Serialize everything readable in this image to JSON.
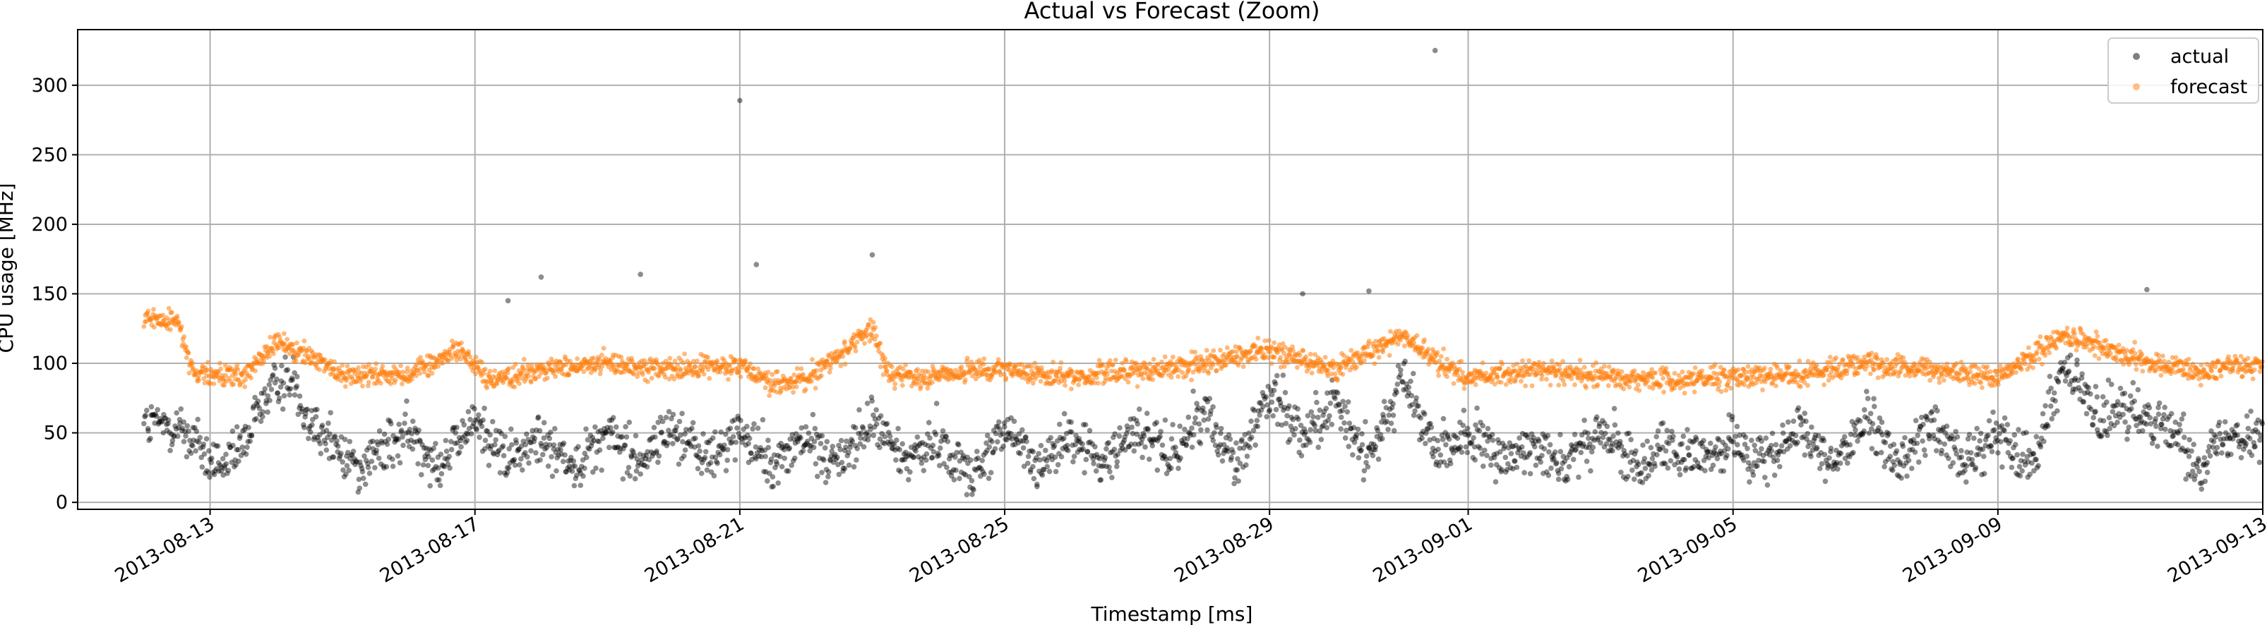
{
  "chart_data": {
    "type": "scatter",
    "title": "Actual vs Forecast (Zoom)",
    "xlabel": "Timestamp [ms]",
    "ylabel": "CPU usage [MHz]",
    "x_start": "2013-08-12",
    "x_end": "2013-09-13",
    "xlim": [
      "2013-08-11",
      "2013-09-13"
    ],
    "ylim": [
      -5,
      340
    ],
    "grid": true,
    "legend_position": "top-right",
    "x_ticks": [
      "2013-08-13",
      "2013-08-17",
      "2013-08-21",
      "2013-08-25",
      "2013-08-29",
      "2013-09-01",
      "2013-09-05",
      "2013-09-09",
      "2013-09-13"
    ],
    "y_ticks": [
      0,
      50,
      100,
      150,
      200,
      250,
      300
    ],
    "series": [
      {
        "name": "actual",
        "color": "#000000",
        "profile": [
          [
            "2013-08-12T12:00",
            55
          ],
          [
            "2013-08-12T18:00",
            45
          ],
          [
            "2013-08-13T00:00",
            28
          ],
          [
            "2013-08-13T06:00",
            26
          ],
          [
            "2013-08-13T12:00",
            40
          ],
          [
            "2013-08-13T18:00",
            70
          ],
          [
            "2013-08-14T00:00",
            85
          ],
          [
            "2013-08-14T06:00",
            90
          ],
          [
            "2013-08-14T12:00",
            60
          ],
          [
            "2013-08-15T00:00",
            35
          ],
          [
            "2013-08-15T06:00",
            26
          ],
          [
            "2013-08-16T00:00",
            50
          ],
          [
            "2013-08-16T12:00",
            28
          ],
          [
            "2013-08-17T00:00",
            60
          ],
          [
            "2013-08-17T12:00",
            30
          ],
          [
            "2013-08-18T00:00",
            45
          ],
          [
            "2013-08-18T12:00",
            28
          ],
          [
            "2013-08-19T00:00",
            50
          ],
          [
            "2013-08-19T12:00",
            30
          ],
          [
            "2013-08-20T00:00",
            55
          ],
          [
            "2013-08-20T12:00",
            30
          ],
          [
            "2013-08-21T00:00",
            50
          ],
          [
            "2013-08-21T12:00",
            28
          ],
          [
            "2013-08-22T00:00",
            45
          ],
          [
            "2013-08-22T12:00",
            28
          ],
          [
            "2013-08-23T00:00",
            60
          ],
          [
            "2013-08-23T12:00",
            30
          ],
          [
            "2013-08-24T00:00",
            45
          ],
          [
            "2013-08-24T12:00",
            18
          ],
          [
            "2013-08-25T00:00",
            50
          ],
          [
            "2013-08-25T12:00",
            28
          ],
          [
            "2013-08-26T00:00",
            45
          ],
          [
            "2013-08-26T12:00",
            28
          ],
          [
            "2013-08-27T00:00",
            55
          ],
          [
            "2013-08-27T12:00",
            30
          ],
          [
            "2013-08-28T00:00",
            65
          ],
          [
            "2013-08-28T12:00",
            30
          ],
          [
            "2013-08-29T00:00",
            80
          ],
          [
            "2013-08-29T12:00",
            50
          ],
          [
            "2013-08-30T00:00",
            70
          ],
          [
            "2013-08-30T12:00",
            30
          ],
          [
            "2013-08-31T00:00",
            90
          ],
          [
            "2013-08-31T12:00",
            35
          ],
          [
            "2013-09-01T00:00",
            50
          ],
          [
            "2013-09-01T12:00",
            28
          ],
          [
            "2013-09-02T00:00",
            45
          ],
          [
            "2013-09-02T12:00",
            28
          ],
          [
            "2013-09-03T00:00",
            50
          ],
          [
            "2013-09-03T12:00",
            28
          ],
          [
            "2013-09-04T00:00",
            40
          ],
          [
            "2013-09-04T12:00",
            28
          ],
          [
            "2013-09-05T00:00",
            45
          ],
          [
            "2013-09-05T12:00",
            28
          ],
          [
            "2013-09-06T00:00",
            50
          ],
          [
            "2013-09-06T12:00",
            28
          ],
          [
            "2013-09-07T00:00",
            60
          ],
          [
            "2013-09-07T12:00",
            28
          ],
          [
            "2013-09-08T00:00",
            55
          ],
          [
            "2013-09-08T12:00",
            28
          ],
          [
            "2013-09-09T00:00",
            50
          ],
          [
            "2013-09-09T12:00",
            30
          ],
          [
            "2013-09-10T00:00",
            100
          ],
          [
            "2013-09-10T12:00",
            60
          ],
          [
            "2013-09-11T00:00",
            65
          ],
          [
            "2013-09-11T12:00",
            60
          ],
          [
            "2013-09-12T00:00",
            28
          ],
          [
            "2013-09-12T12:00",
            50
          ]
        ],
        "outliers": [
          [
            "2013-08-21T00:00",
            289
          ],
          [
            "2013-08-31T12:00",
            325
          ],
          [
            "2013-08-21T06:00",
            171
          ],
          [
            "2013-08-23T00:00",
            178
          ],
          [
            "2013-08-18T00:00",
            162
          ],
          [
            "2013-08-19T12:00",
            164
          ],
          [
            "2013-08-17T12:00",
            145
          ],
          [
            "2013-08-29T12:00",
            150
          ],
          [
            "2013-08-30T12:00",
            152
          ],
          [
            "2013-09-11T06:00",
            153
          ],
          [
            "2013-08-18T12:00",
            12
          ]
        ]
      },
      {
        "name": "forecast",
        "color": "#ff7f0e",
        "profile": [
          [
            "2013-08-12T12:00",
            132
          ],
          [
            "2013-08-12T18:00",
            92
          ],
          [
            "2013-08-13T12:00",
            90
          ],
          [
            "2013-08-14T00:00",
            115
          ],
          [
            "2013-08-14T12:00",
            105
          ],
          [
            "2013-08-15T00:00",
            92
          ],
          [
            "2013-08-16T00:00",
            92
          ],
          [
            "2013-08-16T18:00",
            110
          ],
          [
            "2013-08-17T06:00",
            88
          ],
          [
            "2013-08-18T00:00",
            95
          ],
          [
            "2013-08-19T00:00",
            100
          ],
          [
            "2013-08-20T00:00",
            95
          ],
          [
            "2013-08-21T00:00",
            100
          ],
          [
            "2013-08-21T12:00",
            85
          ],
          [
            "2013-08-22T00:00",
            88
          ],
          [
            "2013-08-23T00:00",
            125
          ],
          [
            "2013-08-23T06:00",
            90
          ],
          [
            "2013-08-24T00:00",
            92
          ],
          [
            "2013-08-25T00:00",
            95
          ],
          [
            "2013-08-26T00:00",
            90
          ],
          [
            "2013-08-27T00:00",
            95
          ],
          [
            "2013-08-28T00:00",
            100
          ],
          [
            "2013-08-29T00:00",
            110
          ],
          [
            "2013-08-30T00:00",
            95
          ],
          [
            "2013-08-31T00:00",
            120
          ],
          [
            "2013-08-31T18:00",
            95
          ],
          [
            "2013-09-01T00:00",
            90
          ],
          [
            "2013-09-02T00:00",
            95
          ],
          [
            "2013-09-03T00:00",
            90
          ],
          [
            "2013-09-04T00:00",
            88
          ],
          [
            "2013-09-05T00:00",
            90
          ],
          [
            "2013-09-06T00:00",
            92
          ],
          [
            "2013-09-07T00:00",
            100
          ],
          [
            "2013-09-08T00:00",
            95
          ],
          [
            "2013-09-09T00:00",
            90
          ],
          [
            "2013-09-10T00:00",
            120
          ],
          [
            "2013-09-11T00:00",
            105
          ],
          [
            "2013-09-12T00:00",
            92
          ],
          [
            "2013-09-12T12:00",
            98
          ]
        ]
      }
    ]
  }
}
